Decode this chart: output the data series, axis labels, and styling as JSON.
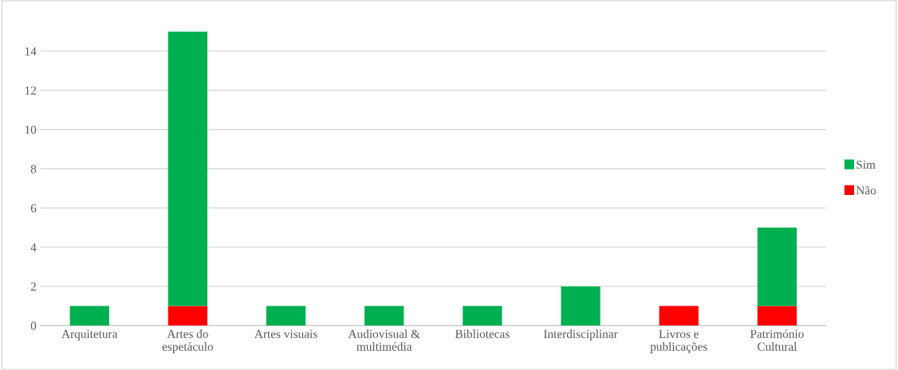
{
  "chart_data": {
    "type": "bar",
    "stacked": true,
    "categories": [
      "Arquitetura",
      "Artes do\nespetáculo",
      "Artes visuais",
      "Audiovisual &\nmultimédia",
      "Bibliotecas",
      "Interdisciplinar",
      "Livros e\npublicações",
      "Património\nCultural"
    ],
    "series": [
      {
        "name": "Não",
        "color": "#ff0000",
        "values": [
          null,
          1,
          null,
          null,
          null,
          null,
          1,
          1
        ]
      },
      {
        "name": "Sim",
        "color": "#00b050",
        "values": [
          1,
          14,
          1,
          1,
          1,
          2,
          null,
          4
        ]
      }
    ],
    "ylim": [
      0,
      15
    ],
    "yticks": [
      0,
      2,
      4,
      6,
      8,
      10,
      12,
      14
    ],
    "grid": "y",
    "legend": "right"
  }
}
